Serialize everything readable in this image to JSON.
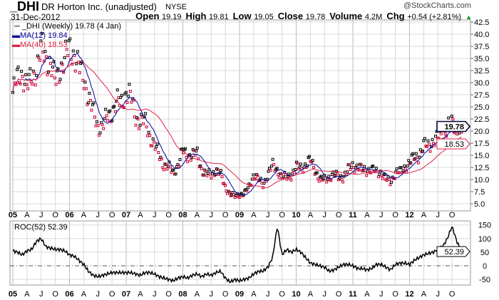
{
  "header": {
    "symbol": "_DHI",
    "company": "DR Horton Inc. (unadjusted)",
    "exchange": "NYSE",
    "date": "31-Dec-2012",
    "watermark": "@StockCharts.com",
    "quote": [
      {
        "label": "Open",
        "value": "19.19"
      },
      {
        "label": "High",
        "value": "19.81"
      },
      {
        "label": "Low",
        "value": "19.05"
      },
      {
        "label": "Close",
        "value": "19.78"
      },
      {
        "label": "Volume",
        "value": "4.2M"
      },
      {
        "label": "Chg",
        "value": "+0.54 (+2.81%)"
      }
    ],
    "chg_icon": "up-triangle-icon"
  },
  "legend": {
    "price": "_DHI (Weekly) 19.78 (4 Jan)",
    "ma12": "MA(12) 19.84",
    "ma40": "MA(40) 18.53",
    "roc": "ROC(52) 52.39"
  },
  "colors": {
    "price_up": "#000000",
    "price_down": "#cc0033",
    "ma12": "#000099",
    "ma40": "#dd2244",
    "roc": "#000000",
    "grid": "#d8d8d8",
    "up_arrow": "#009900"
  },
  "chart_data": [
    {
      "type": "scatter",
      "title": "_DHI (Weekly)",
      "yscale": "linear",
      "ylim": [
        3.5,
        43
      ],
      "grid": true,
      "legend": "top-left",
      "yticks": [
        "42.5",
        "40.0",
        "37.5",
        "35.0",
        "32.5",
        "30.0",
        "27.5",
        "25.0",
        "22.5",
        "20.0",
        "17.5",
        "15.0",
        "12.5",
        "10.0",
        "7.5",
        "5.0"
      ],
      "price_tags": {
        "close": "19.78",
        "ma40": "18.53"
      },
      "x_start": "2005-01",
      "x_end": "2012-12",
      "x_unit": "month",
      "xticks": [
        "05",
        "A",
        "J",
        "O",
        "06",
        "A",
        "J",
        "O",
        "07",
        "A",
        "J",
        "O",
        "08",
        "A",
        "J",
        "O",
        "09",
        "A",
        "J",
        "O",
        "10",
        "A",
        "J",
        "O",
        "11",
        "A",
        "J",
        "O",
        "12",
        "A",
        "J",
        "O"
      ],
      "series": [
        {
          "name": "_DHI",
          "monthly_close": [
            28,
            31,
            32,
            29,
            31,
            33,
            37,
            35,
            34,
            30,
            33,
            35,
            37,
            36,
            33,
            31,
            27,
            24,
            21,
            21,
            23,
            24,
            26,
            26,
            28,
            27,
            23,
            22,
            22,
            19,
            17,
            15,
            13,
            12.5,
            11.5,
            13,
            16,
            15,
            15,
            15.5,
            12,
            11,
            11,
            12,
            11,
            8.5,
            7,
            6.5,
            7,
            7,
            8.5,
            11,
            10,
            9,
            11,
            13,
            12,
            10.5,
            10.5,
            11,
            12.5,
            12.5,
            13,
            14,
            12,
            10,
            10,
            10.5,
            11,
            10.5,
            10.5,
            12,
            13,
            12.5,
            12,
            12,
            12,
            11.5,
            11.5,
            10,
            9.5,
            11.5,
            11.5,
            12.5,
            13.5,
            14.5,
            15,
            17,
            17,
            18,
            18.5,
            19,
            21,
            21.5,
            20,
            19.78
          ]
        },
        {
          "name": "MA(12)",
          "value": "19.84"
        },
        {
          "name": "MA(40)",
          "value": "18.53"
        }
      ]
    },
    {
      "type": "line",
      "title": "ROC(52)",
      "ylim": [
        -65,
        165
      ],
      "yticks": [
        "150",
        "100",
        "50",
        "0",
        "-50"
      ],
      "last": "52.39",
      "xticks": [
        "05",
        "A",
        "J",
        "O",
        "06",
        "A",
        "J",
        "O",
        "07",
        "A",
        "J",
        "O",
        "08",
        "A",
        "J",
        "O",
        "09",
        "A",
        "J",
        "O",
        "10",
        "A",
        "J",
        "O",
        "11",
        "A",
        "J",
        "O",
        "12",
        "A",
        "J",
        "O"
      ],
      "series": [
        {
          "name": "ROC(52)",
          "monthly": [
            55,
            50,
            40,
            55,
            60,
            90,
            100,
            70,
            65,
            60,
            60,
            55,
            40,
            35,
            20,
            5,
            -20,
            -35,
            -40,
            -35,
            -30,
            -25,
            -25,
            -25,
            -25,
            -25,
            -30,
            -35,
            -25,
            -25,
            -30,
            -40,
            -45,
            -50,
            -55,
            -45,
            -40,
            -45,
            -35,
            -30,
            -40,
            -30,
            -35,
            -25,
            -20,
            -45,
            -60,
            -50,
            -55,
            -50,
            -45,
            -30,
            -20,
            -20,
            -5,
            30,
            145,
            40,
            60,
            50,
            60,
            50,
            30,
            10,
            5,
            0,
            -5,
            -20,
            -15,
            -5,
            5,
            5,
            0,
            -10,
            -10,
            -15,
            -10,
            5,
            5,
            -5,
            -15,
            5,
            10,
            10,
            5,
            20,
            30,
            40,
            45,
            50,
            60,
            70,
            100,
            145,
            90,
            52.39
          ]
        }
      ]
    }
  ]
}
